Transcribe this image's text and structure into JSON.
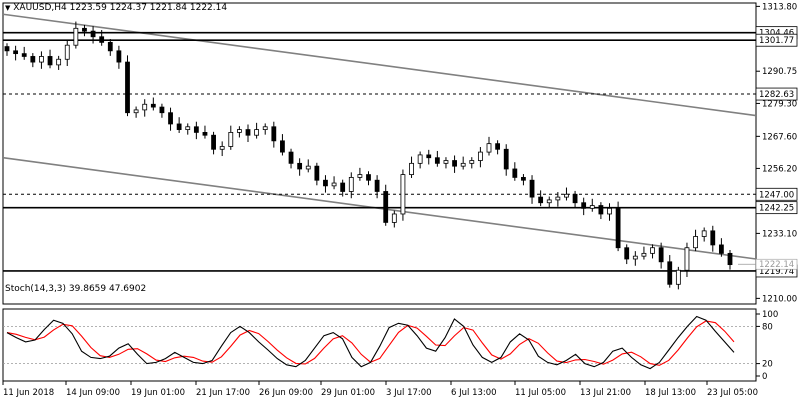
{
  "header": {
    "symbol": "XAUUSD,H4",
    "ohlc": "1223.59 1224.37 1221.84 1222.14",
    "menu_arrow": "down-triangle-icon"
  },
  "stoch_header": "Stoch(14,3,3) 39.8659 47.6902",
  "colors": {
    "background": "#ffffff",
    "candle": "#000000",
    "trendline": "#808080",
    "stoch_main": "#000000",
    "stoch_signal": "#ff0000",
    "level_line": "#000000",
    "grid_dash": "#000000"
  },
  "price_axis": {
    "labels": [
      "1313.80",
      "1290.75",
      "1279.30",
      "1267.60",
      "1256.20",
      "1233.10",
      "1210.00"
    ]
  },
  "stoch_axis": {
    "labels": [
      "100",
      "80",
      "20",
      "0"
    ]
  },
  "time_axis": {
    "labels": [
      "11 Jun 2018",
      "14 Jun 09:00",
      "19 Jun 01:00",
      "21 Jun 17:00",
      "26 Jun 09:00",
      "29 Jun 01:00",
      "3 Jul 17:00",
      "6 Jul 13:00",
      "11 Jul 05:00",
      "13 Jul 21:00",
      "18 Jul 13:00",
      "23 Jul 05:00"
    ]
  },
  "levels": [
    {
      "price": 1304.46,
      "label": "1304.46",
      "style": "solid"
    },
    {
      "price": 1301.77,
      "label": "1301.77",
      "style": "solid"
    },
    {
      "price": 1282.63,
      "label": "1282.63",
      "style": "dashed"
    },
    {
      "price": 1247.0,
      "label": "1247.00",
      "style": "dashed"
    },
    {
      "price": 1242.25,
      "label": "1242.25",
      "style": "solid"
    },
    {
      "price": 1219.74,
      "label": "1219.74",
      "style": "solid"
    }
  ],
  "current_price": {
    "price": 1222.14,
    "label": "1222.14"
  },
  "chart_data": {
    "type": "candlestick",
    "symbol": "XAUUSD",
    "timeframe": "H4",
    "ylim": [
      1208,
      1315
    ],
    "close_path": [
      1298,
      1297,
      1296,
      1294,
      1296,
      1293,
      1295,
      1300,
      1306,
      1305,
      1303,
      1301,
      1298,
      1294,
      1276,
      1277,
      1279,
      1278,
      1276,
      1272,
      1270,
      1271,
      1269,
      1268,
      1263,
      1264,
      1269,
      1270,
      1268,
      1270,
      1271,
      1266,
      1262,
      1258,
      1256,
      1257,
      1252,
      1250,
      1251,
      1248,
      1253,
      1254,
      1252,
      1248,
      1237,
      1240,
      1254,
      1258,
      1261,
      1260,
      1258,
      1259,
      1257,
      1258,
      1259,
      1262,
      1265,
      1263,
      1256,
      1253,
      1252,
      1246,
      1244,
      1245,
      1246,
      1247,
      1244,
      1242,
      1243,
      1240,
      1242,
      1228,
      1224,
      1225,
      1226,
      1228,
      1223,
      1215,
      1220,
      1228,
      1232,
      1234,
      1229,
      1226,
      1222
    ],
    "stoch_main": [
      70,
      62,
      55,
      58,
      75,
      90,
      85,
      68,
      40,
      30,
      28,
      32,
      45,
      52,
      35,
      20,
      22,
      28,
      38,
      30,
      22,
      20,
      25,
      48,
      70,
      80,
      70,
      55,
      42,
      28,
      18,
      15,
      25,
      45,
      65,
      70,
      60,
      30,
      15,
      22,
      48,
      78,
      85,
      82,
      65,
      45,
      40,
      62,
      92,
      80,
      50,
      30,
      22,
      30,
      55,
      68,
      58,
      32,
      22,
      18,
      25,
      35,
      20,
      15,
      22,
      40,
      45,
      30,
      18,
      12,
      22,
      42,
      62,
      80,
      96,
      90,
      72,
      55,
      38
    ]
  }
}
